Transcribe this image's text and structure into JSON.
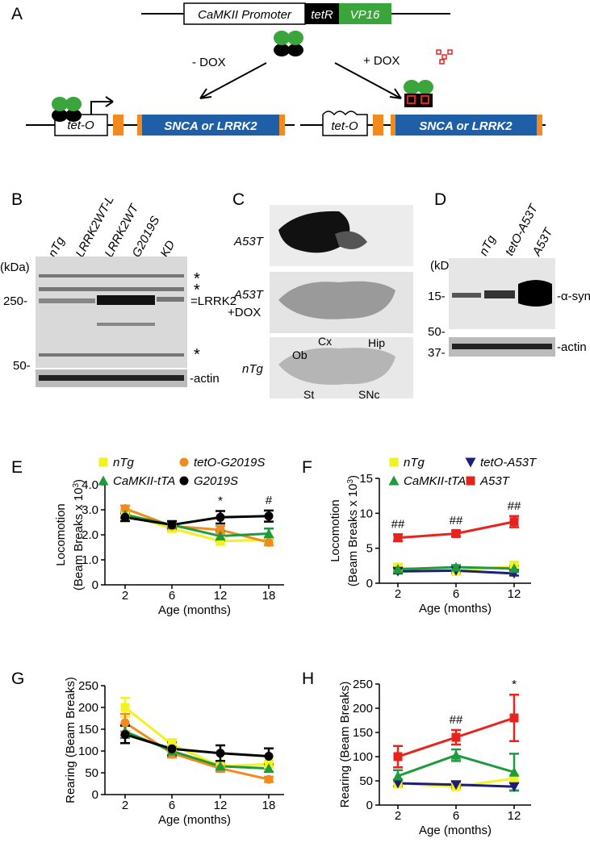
{
  "panel_a": {
    "letter": "A",
    "promoter": "CaMKII Promoter",
    "tetr": "tetR",
    "vp16": "VP16",
    "minus_dox": "- DOX",
    "plus_dox": "+ DOX",
    "tet_o_left": "tet-O",
    "tet_o_right": "tet-O",
    "gene_left": "SNCA or LRRK2",
    "gene_right": "SNCA or LRRK2"
  },
  "panel_b": {
    "letter": "B",
    "lanes": [
      "nTg",
      "LRRK2WT-L",
      "LRRK2WT",
      "G2019S",
      "KD"
    ],
    "unit": "(kDa)",
    "markers": [
      "250-",
      "50-"
    ],
    "labels": [
      "*",
      "*",
      "=LRRK2",
      "*",
      "-actin"
    ]
  },
  "panel_c": {
    "letter": "C",
    "rows": [
      "A53T",
      "A53T",
      "+DOX",
      "nTg"
    ],
    "regions": [
      "Ob",
      "Cx",
      "Hip",
      "St",
      "SNc"
    ]
  },
  "panel_d": {
    "letter": "D",
    "lanes": [
      "nTg",
      "tetO-A53T",
      "A53T"
    ],
    "unit": "(kDa)",
    "markers": [
      "15-",
      "50-",
      "37-"
    ],
    "labels": [
      "-α-syn",
      "-actin"
    ]
  },
  "chart_data": [
    {
      "type": "line",
      "panel": "E",
      "ylabel": [
        [
          "Locomotion"
        ],
        [
          "(Beam Breaks x 10",
          "3",
          ")"
        ]
      ],
      "xlabel": "Age (months)",
      "categories": [
        "2",
        "6",
        "12",
        "18"
      ],
      "ylim": [
        0,
        4
      ],
      "yticks": [
        0,
        {
          "value": 1,
          "label": "1.0"
        },
        {
          "value": 2,
          "label": "2.0"
        },
        {
          "value": 3,
          "label": "3.0"
        },
        {
          "value": 4,
          "label": "4.0"
        }
      ],
      "legend": "top",
      "annotations": [
        null,
        null,
        "*",
        "#"
      ],
      "series": [
        {
          "name": "nTg",
          "color": "#f2f21e",
          "marker": "square",
          "values": [
            2.85,
            2.25,
            1.75,
            1.8
          ],
          "errors": [
            0.1,
            0.12,
            0.15,
            0.1
          ]
        },
        {
          "name": "tetO-G2019S",
          "color": "#f28a1e",
          "marker": "circle",
          "values": [
            3.05,
            2.35,
            2.2,
            1.7
          ],
          "errors": [
            0.12,
            0.15,
            0.15,
            0.12
          ]
        },
        {
          "name": "CaMKII-tTA",
          "color": "#1e9b3c",
          "marker": "triangle",
          "values": [
            2.8,
            2.4,
            1.95,
            2.05
          ],
          "errors": [
            0.12,
            0.1,
            0.2,
            0.2
          ]
        },
        {
          "name": "G2019S",
          "color": "#000000",
          "marker": "circle",
          "values": [
            2.7,
            2.4,
            2.7,
            2.75
          ],
          "errors": [
            0.15,
            0.15,
            0.25,
            0.22
          ]
        }
      ]
    },
    {
      "type": "line",
      "panel": "F",
      "ylabel": [
        [
          "Locomotion"
        ],
        [
          "(Beam Breaks x 10",
          "3",
          ")"
        ]
      ],
      "xlabel": "Age (months)",
      "categories": [
        "2",
        "6",
        "12"
      ],
      "ylim": [
        0,
        15
      ],
      "yticks": [
        0,
        5,
        10,
        15
      ],
      "legend": "top",
      "annotations": [
        "##",
        "##",
        "##"
      ],
      "series": [
        {
          "name": "nTg",
          "color": "#f2f21e",
          "marker": "square",
          "values": [
            2.2,
            1.8,
            2.4
          ],
          "errors": [
            0.6,
            0.6,
            0.7
          ]
        },
        {
          "name": "tetO-A53T",
          "color": "#1e1e78",
          "marker": "triangle-down",
          "values": [
            1.7,
            1.8,
            1.4
          ],
          "errors": [
            0.3,
            0.3,
            0.3
          ]
        },
        {
          "name": "CaMKII-tTA",
          "color": "#1e9b3c",
          "marker": "triangle",
          "values": [
            2.0,
            2.3,
            2.1
          ],
          "errors": [
            0.3,
            0.3,
            0.4
          ]
        },
        {
          "name": "A53T",
          "color": "#e8231e",
          "marker": "square",
          "values": [
            6.5,
            7.1,
            8.8
          ],
          "errors": [
            0.5,
            0.4,
            0.8
          ]
        }
      ]
    },
    {
      "type": "line",
      "panel": "G",
      "ylabel": [
        [
          "Rearing (Beam Breaks)"
        ]
      ],
      "xlabel": "Age (months)",
      "categories": [
        "2",
        "6",
        "12",
        "18"
      ],
      "ylim": [
        0,
        250
      ],
      "yticks": [
        0,
        50,
        100,
        150,
        200,
        250
      ],
      "series": [
        {
          "color": "#f2f21e",
          "marker": "square",
          "values": [
            200,
            115,
            65,
            70
          ],
          "errors": [
            22,
            12,
            8,
            8
          ]
        },
        {
          "color": "#f28a1e",
          "marker": "circle",
          "values": [
            165,
            95,
            60,
            35
          ],
          "errors": [
            20,
            10,
            8,
            6
          ]
        },
        {
          "color": "#1e9b3c",
          "marker": "triangle",
          "values": [
            145,
            100,
            65,
            60
          ],
          "errors": [
            15,
            10,
            8,
            8
          ]
        },
        {
          "color": "#000000",
          "marker": "circle",
          "values": [
            138,
            105,
            95,
            88
          ],
          "errors": [
            20,
            15,
            18,
            18
          ]
        }
      ]
    },
    {
      "type": "line",
      "panel": "H",
      "ylabel": [
        [
          "Rearing (Beam Breaks)"
        ]
      ],
      "xlabel": "Age (months)",
      "categories": [
        "2",
        "6",
        "12"
      ],
      "ylim": [
        0,
        250
      ],
      "yticks": [
        0,
        50,
        100,
        150,
        200,
        250
      ],
      "annotations": [
        null,
        "##",
        "*"
      ],
      "series": [
        {
          "color": "#f2f21e",
          "marker": "square",
          "values": [
            45,
            38,
            55
          ],
          "errors": [
            8,
            6,
            8
          ]
        },
        {
          "color": "#1e1e78",
          "marker": "triangle-down",
          "values": [
            45,
            42,
            38
          ],
          "errors": [
            6,
            6,
            8
          ]
        },
        {
          "color": "#1e9b3c",
          "marker": "triangle",
          "values": [
            60,
            103,
            68
          ],
          "errors": [
            12,
            12,
            38
          ]
        },
        {
          "color": "#e8231e",
          "marker": "square",
          "values": [
            100,
            140,
            180
          ],
          "errors": [
            22,
            15,
            48
          ]
        }
      ]
    }
  ]
}
